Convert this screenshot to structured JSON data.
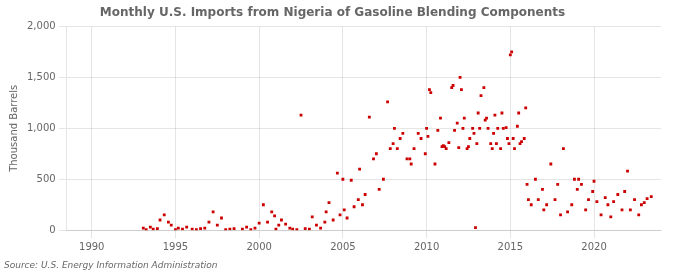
{
  "chart_data": {
    "type": "scatter",
    "title": "Monthly U.S. Imports from Nigeria of Gasoline Blending Components",
    "ylabel": "Thousand Barrels",
    "annotations": [
      "Source: U.S. Energy Information Administration"
    ],
    "color": "#cc0000",
    "marker": "square",
    "grid": true,
    "xlim": [
      1988.5,
      2024.0
    ],
    "xticks": [
      1990,
      1995,
      2000,
      2005,
      2010,
      2015,
      2020
    ],
    "ylim": [
      0,
      2000
    ],
    "yticks": [
      0,
      500,
      {
        "value": 1000,
        "label": "1,000"
      },
      {
        "value": 1500,
        "label": "1,500"
      },
      {
        "value": 2000,
        "label": "2,000"
      }
    ],
    "x": [
      1993.08,
      1993.25,
      1993.5,
      1993.67,
      1993.92,
      1994.08,
      1994.33,
      1994.58,
      1994.75,
      1995.0,
      1995.17,
      1995.42,
      1995.67,
      1996.0,
      1996.25,
      1996.5,
      1996.75,
      1997.0,
      1997.25,
      1997.5,
      1997.75,
      1998.0,
      1998.25,
      1998.5,
      1999.0,
      1999.25,
      1999.5,
      1999.75,
      2000.0,
      2000.25,
      2000.5,
      2000.75,
      2000.92,
      2001.0,
      2001.17,
      2001.33,
      2001.58,
      2001.83,
      2002.0,
      2002.25,
      2002.5,
      2002.75,
      2003.0,
      2003.17,
      2003.42,
      2003.67,
      2003.92,
      2004.0,
      2004.17,
      2004.42,
      2004.67,
      2004.83,
      2005.0,
      2005.08,
      2005.25,
      2005.5,
      2005.67,
      2005.92,
      2006.0,
      2006.17,
      2006.33,
      2006.58,
      2006.83,
      2007.0,
      2007.17,
      2007.42,
      2007.67,
      2007.83,
      2008.0,
      2008.08,
      2008.25,
      2008.42,
      2008.58,
      2008.83,
      2009.0,
      2009.08,
      2009.25,
      2009.5,
      2009.67,
      2009.92,
      2010.0,
      2010.08,
      2010.17,
      2010.25,
      2010.5,
      2010.67,
      2010.83,
      2010.92,
      2011.0,
      2011.08,
      2011.17,
      2011.33,
      2011.5,
      2011.58,
      2011.67,
      2011.83,
      2011.92,
      2012.0,
      2012.08,
      2012.17,
      2012.25,
      2012.42,
      2012.5,
      2012.58,
      2012.75,
      2012.83,
      2012.92,
      2013.0,
      2013.08,
      2013.17,
      2013.25,
      2013.42,
      2013.5,
      2013.58,
      2013.67,
      2013.83,
      2013.92,
      2014.0,
      2014.08,
      2014.17,
      2014.25,
      2014.42,
      2014.5,
      2014.58,
      2014.75,
      2014.83,
      2014.92,
      2015.0,
      2015.08,
      2015.17,
      2015.25,
      2015.42,
      2015.5,
      2015.58,
      2015.67,
      2015.83,
      2015.92,
      2016.0,
      2016.08,
      2016.25,
      2016.5,
      2016.67,
      2016.92,
      2017.0,
      2017.17,
      2017.42,
      2017.67,
      2017.83,
      2018.0,
      2018.17,
      2018.42,
      2018.67,
      2018.83,
      2019.0,
      2019.08,
      2019.25,
      2019.5,
      2019.67,
      2019.92,
      2020.0,
      2020.17,
      2020.42,
      2020.67,
      2020.83,
      2021.0,
      2021.17,
      2021.42,
      2021.67,
      2021.83,
      2022.0,
      2022.17,
      2022.42,
      2022.67,
      2022.83,
      2023.0,
      2023.17,
      2023.42
    ],
    "values": [
      20,
      5,
      30,
      10,
      15,
      100,
      150,
      80,
      50,
      5,
      20,
      10,
      30,
      10,
      5,
      15,
      20,
      80,
      180,
      50,
      120,
      5,
      10,
      15,
      10,
      30,
      5,
      20,
      70,
      250,
      80,
      180,
      140,
      10,
      50,
      100,
      60,
      20,
      10,
      5,
      1130,
      15,
      10,
      130,
      50,
      20,
      80,
      180,
      270,
      100,
      560,
      150,
      500,
      200,
      120,
      490,
      230,
      300,
      600,
      250,
      350,
      1110,
      700,
      750,
      400,
      500,
      1260,
      800,
      850,
      1000,
      800,
      900,
      950,
      700,
      700,
      650,
      800,
      950,
      900,
      750,
      1000,
      920,
      1380,
      1350,
      650,
      980,
      1100,
      820,
      830,
      820,
      800,
      860,
      1400,
      1420,
      980,
      1050,
      810,
      1500,
      1380,
      1000,
      1100,
      800,
      820,
      900,
      1000,
      950,
      25,
      850,
      1150,
      1000,
      1320,
      1400,
      1080,
      1100,
      1000,
      850,
      800,
      950,
      1130,
      850,
      1000,
      800,
      1150,
      1000,
      1007,
      900,
      850,
      1720,
      1750,
      900,
      800,
      1020,
      1150,
      850,
      870,
      900,
      1200,
      450,
      300,
      250,
      500,
      300,
      400,
      200,
      250,
      650,
      300,
      450,
      150,
      800,
      180,
      250,
      500,
      400,
      500,
      450,
      200,
      300,
      380,
      480,
      280,
      150,
      320,
      250,
      130,
      280,
      350,
      200,
      380,
      580,
      200,
      300,
      150,
      250,
      270,
      310,
      330
    ]
  }
}
